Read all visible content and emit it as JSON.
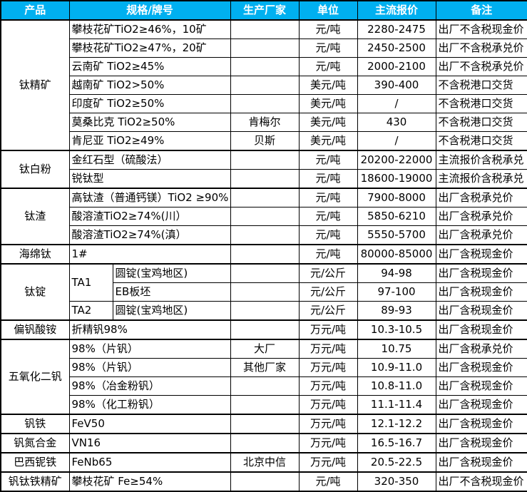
{
  "colors": {
    "header_bg": "#00B0F0",
    "header_text": "#FFFFFF",
    "border_color": "#000000",
    "body_bg": "#FFFFFF",
    "body_text": "#000000"
  },
  "columns": [
    "产品",
    "规格/牌号",
    "生产厂家",
    "单位",
    "主流报价",
    "备注"
  ],
  "groups": [
    {
      "product": "钛精矿",
      "rows": [
        {
          "spec": "攀枝花矿TiO2≥46%，10矿",
          "mfr": "",
          "unit": "元/吨",
          "price": "2280-2475",
          "note": "出厂不含税现金价"
        },
        {
          "spec": "攀枝花矿TiO2≥47%，20矿",
          "mfr": "",
          "unit": "元/吨",
          "price": "2450-2500",
          "note": "出厂不含税承兑价"
        },
        {
          "spec": "云南矿 TiO2≥45%",
          "mfr": "",
          "unit": "元/吨",
          "price": "2000-2100",
          "note": "出厂不含税承兑价"
        },
        {
          "spec": "越南矿 TiO2>50%",
          "mfr": "",
          "unit": "美元/吨",
          "price": "390-400",
          "note": "不含税港口交货"
        },
        {
          "spec": "印度矿 TiO2≥50%",
          "mfr": "",
          "unit": "美元/吨",
          "price": "/",
          "note": "不含税港口交货"
        },
        {
          "spec": "莫桑比克 TiO2≥50%",
          "mfr": "肯梅尔",
          "unit": "美元/吨",
          "price": "430",
          "note": "不含税港口交货"
        },
        {
          "spec": "肯尼亚 TiO2≥49%",
          "mfr": "贝斯",
          "unit": "美元/吨",
          "price": "/",
          "note": "不含税港口交货"
        }
      ]
    },
    {
      "product": "钛白粉",
      "rows": [
        {
          "spec": "金红石型（硫酸法）",
          "mfr": "",
          "unit": "元/吨",
          "price": "20200-22000",
          "note": "主流报价含税承兑"
        },
        {
          "spec": "锐钛型",
          "mfr": "",
          "unit": "元/吨",
          "price": "18600-19000",
          "note": "主流报价含税承兑"
        }
      ]
    },
    {
      "product": "钛渣",
      "rows": [
        {
          "spec": "高钛渣（普通钙镁）TiO2 ≥90%",
          "mfr": "",
          "unit": "元/吨",
          "price": "7900-8000",
          "note": "出厂含税承兑价"
        },
        {
          "spec": "酸溶渣TiO2≥74%(川）",
          "mfr": "",
          "unit": "元/吨",
          "price": "5850-6210",
          "note": "出厂含税承兑价"
        },
        {
          "spec": "酸溶渣TiO2≥74%(滇）",
          "mfr": "",
          "unit": "元/吨",
          "price": "5550-5700",
          "note": "出厂含税承兑价"
        }
      ]
    },
    {
      "product": "海绵钛",
      "rows": [
        {
          "spec": "1#",
          "mfr": "",
          "unit": "元/吨",
          "price": "80000-85000",
          "note": "出厂含税现金价"
        }
      ]
    },
    {
      "product": "钛锭",
      "rows": [
        {
          "grade": "TA1",
          "grade_rowspan": 2,
          "desc": "圆锭(宝鸡地区)",
          "mfr": "",
          "unit": "元/公斤",
          "price": "94-98",
          "note": "出厂含税现金价"
        },
        {
          "desc": "EB板坯",
          "mfr": "",
          "unit": "元/公斤",
          "price": "97-100",
          "note": "出厂含税现金价"
        },
        {
          "grade": "TA2",
          "grade_rowspan": 1,
          "desc": "圆锭(宝鸡地区)",
          "mfr": "",
          "unit": "元/公斤",
          "price": "89-93",
          "note": "出厂含税现金价"
        }
      ]
    },
    {
      "product": "偏钒酸铵",
      "rows": [
        {
          "spec": "折精钒98%",
          "mfr": "",
          "unit": "万元/吨",
          "price": "10.3-10.5",
          "note": "出厂含税现金价"
        }
      ]
    },
    {
      "product": "五氧化二钒",
      "rows": [
        {
          "spec": "98%（片钒）",
          "mfr": "大厂",
          "unit": "万元/吨",
          "price": "10.75",
          "note": "出厂含税承兑价"
        },
        {
          "spec": "98%（片钒）",
          "mfr": "其他厂家",
          "unit": "万元/吨",
          "price": "10.9-11.0",
          "note": "出厂含税现金价"
        },
        {
          "spec": "98%（冶金粉钒）",
          "mfr": "",
          "unit": "万元/吨",
          "price": "10.8-11.0",
          "note": "出厂含税现金价"
        },
        {
          "spec": "98%（化工粉钒）",
          "mfr": "",
          "unit": "万元/吨",
          "price": "11.1-11.4",
          "note": "出厂含税现金价"
        }
      ]
    },
    {
      "product": "钒铁",
      "rows": [
        {
          "spec": "FeV50",
          "mfr": "",
          "unit": "万元/吨",
          "price": "12.1-12.2",
          "note": "出厂含税现金价"
        }
      ]
    },
    {
      "product": "钒氮合金",
      "rows": [
        {
          "spec": "VN16",
          "mfr": "",
          "unit": "万元/吨",
          "price": "16.5-16.7",
          "note": "出厂含税现金价"
        }
      ]
    },
    {
      "product": "巴西铌铁",
      "rows": [
        {
          "spec": "FeNb65",
          "mfr": "北京中信",
          "unit": "万元/吨",
          "price": "20.5-22.5",
          "note": "出厂含税现金价"
        }
      ]
    },
    {
      "product": "钒钛铁精矿",
      "rows": [
        {
          "spec": "攀枝花矿 Fe≥54%",
          "mfr": "",
          "unit": "元/吨",
          "price": "320-350",
          "note": "出厂不含税现金价"
        }
      ]
    }
  ]
}
